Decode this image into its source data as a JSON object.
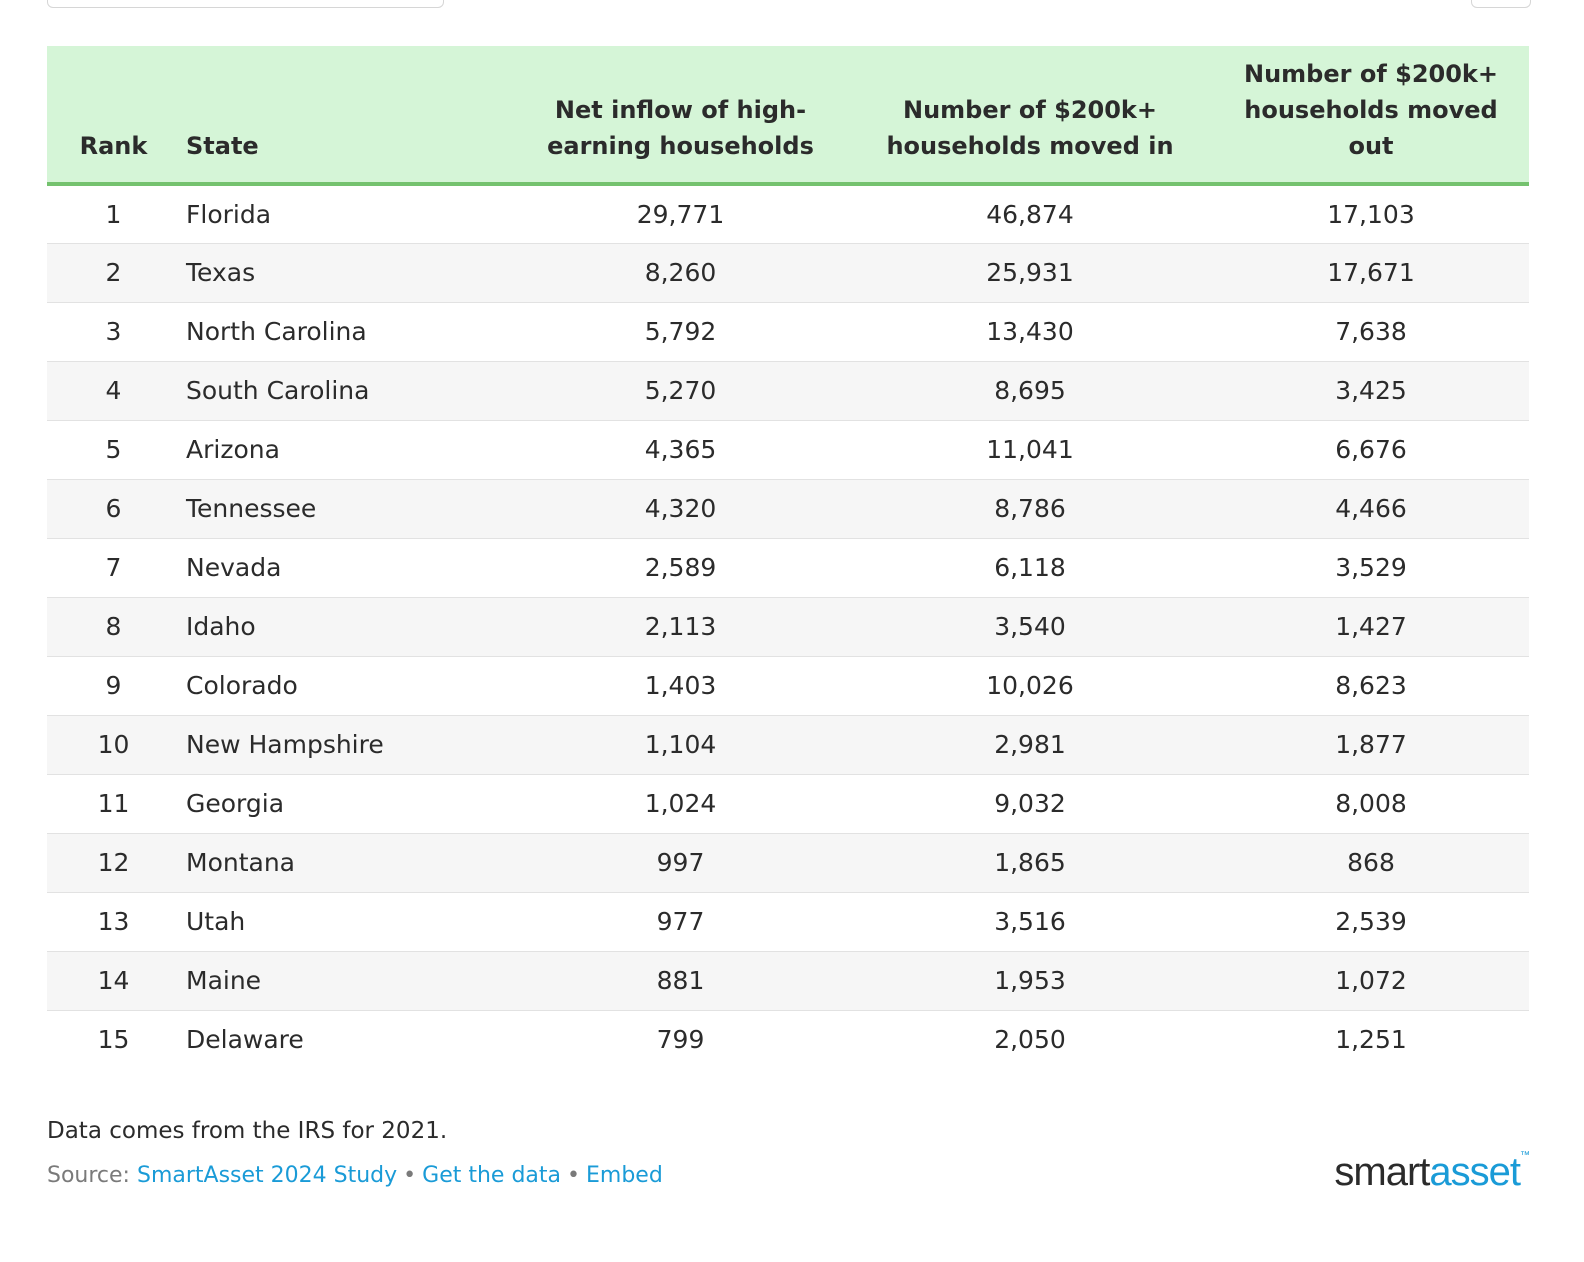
{
  "colors": {
    "header_bg": "#d5f5d7",
    "header_rule": "#74c26e",
    "row_alt": "#f6f6f6",
    "link": "#1a9bd7"
  },
  "chart_data": {
    "type": "table",
    "columns": [
      "Rank",
      "State",
      "Net inflow of high-earning households",
      "Number of $200k+ households moved in",
      "Number of $200k+ households moved out"
    ],
    "rows": [
      [
        "1",
        "Florida",
        "29,771",
        "46,874",
        "17,103"
      ],
      [
        "2",
        "Texas",
        "8,260",
        "25,931",
        "17,671"
      ],
      [
        "3",
        "North Carolina",
        "5,792",
        "13,430",
        "7,638"
      ],
      [
        "4",
        "South Carolina",
        "5,270",
        "8,695",
        "3,425"
      ],
      [
        "5",
        "Arizona",
        "4,365",
        "11,041",
        "6,676"
      ],
      [
        "6",
        "Tennessee",
        "4,320",
        "8,786",
        "4,466"
      ],
      [
        "7",
        "Nevada",
        "2,589",
        "6,118",
        "3,529"
      ],
      [
        "8",
        "Idaho",
        "2,113",
        "3,540",
        "1,427"
      ],
      [
        "9",
        "Colorado",
        "1,403",
        "10,026",
        "8,623"
      ],
      [
        "10",
        "New Hampshire",
        "1,104",
        "2,981",
        "1,877"
      ],
      [
        "11",
        "Georgia",
        "1,024",
        "9,032",
        "8,008"
      ],
      [
        "12",
        "Montana",
        "997",
        "1,865",
        "868"
      ],
      [
        "13",
        "Utah",
        "977",
        "3,516",
        "2,539"
      ],
      [
        "14",
        "Maine",
        "881",
        "1,953",
        "1,072"
      ],
      [
        "15",
        "Delaware",
        "799",
        "2,050",
        "1,251"
      ]
    ]
  },
  "footer": {
    "note": "Data comes from the IRS for 2021.",
    "source_label": "Source:",
    "source_link": "SmartAsset 2024 Study",
    "separator": "•",
    "get_data_link": "Get the data",
    "embed_link": "Embed"
  },
  "logo": {
    "part1": "smart",
    "part2": "asset",
    "tm": "™"
  }
}
